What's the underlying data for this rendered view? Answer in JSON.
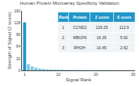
{
  "chart_data": {
    "type": "bar",
    "title": "Human Protein Microarray Specificity Validation",
    "xlabel": "Signal Rank",
    "ylabel": "Strength of Signal (Z score)",
    "x": [
      1,
      2,
      3,
      4,
      5,
      6,
      7,
      8,
      9,
      10,
      11,
      12,
      13,
      14,
      15,
      16,
      17,
      18,
      19,
      20,
      21,
      22,
      23,
      24,
      25,
      26,
      27,
      28,
      29,
      30
    ],
    "values": [
      129.25,
      16.35,
      10.45,
      7.2,
      5.1,
      4.0,
      3.2,
      2.7,
      2.3,
      2.0,
      1.8,
      1.6,
      1.5,
      1.4,
      1.3,
      1.2,
      1.1,
      1.05,
      1.0,
      0.95,
      0.9,
      0.85,
      0.8,
      0.75,
      0.7,
      0.65,
      0.6,
      0.55,
      0.5,
      0.45
    ],
    "colors": [
      "#2196c9",
      "#7ec8e3",
      "#7ec8e3",
      "#7ec8e3",
      "#7ec8e3",
      "#7ec8e3",
      "#7ec8e3",
      "#7ec8e3",
      "#7ec8e3",
      "#7ec8e3",
      "#7ec8e3",
      "#7ec8e3",
      "#7ec8e3",
      "#7ec8e3",
      "#7ec8e3",
      "#7ec8e3",
      "#7ec8e3",
      "#7ec8e3",
      "#7ec8e3",
      "#7ec8e3",
      "#7ec8e3",
      "#7ec8e3",
      "#7ec8e3",
      "#7ec8e3",
      "#7ec8e3",
      "#7ec8e3",
      "#7ec8e3",
      "#7ec8e3",
      "#7ec8e3",
      "#7ec8e3"
    ],
    "xlim": [
      0.3,
      30.5
    ],
    "xticks": [
      1,
      10,
      20,
      30
    ],
    "ylim": [
      0,
      160
    ],
    "yticks": [
      0,
      32,
      64,
      96,
      128,
      160
    ],
    "grid": false,
    "table": {
      "headers": [
        "Rank",
        "Protein",
        "Z score",
        "S score"
      ],
      "rows": [
        [
          "1",
          "CCND2",
          "129.25",
          "112.9"
        ],
        [
          "2",
          "MBGF6",
          "16.35",
          "5.92"
        ],
        [
          "3",
          "RHOH",
          "10.45",
          "2.62"
        ]
      ]
    }
  }
}
